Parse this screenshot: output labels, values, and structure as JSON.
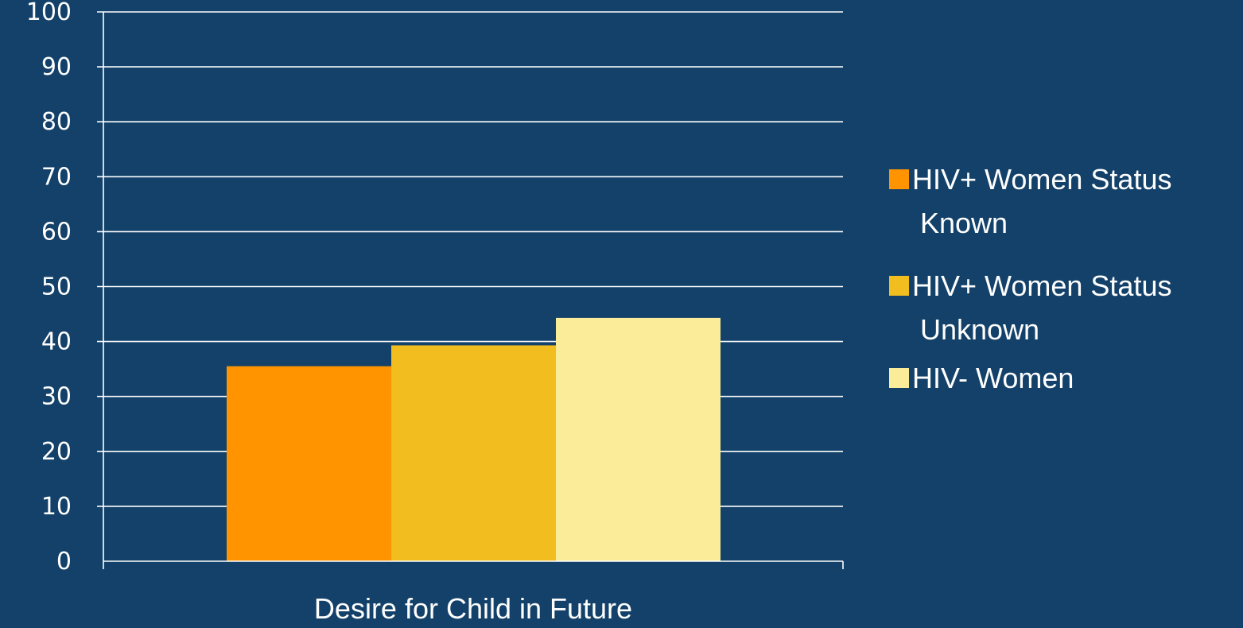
{
  "chart_data": {
    "type": "bar",
    "categories": [
      "Desire for Child in Future"
    ],
    "series": [
      {
        "name": "HIV+ Women Status Known",
        "values": [
          35.5
        ],
        "color": "#FF9400"
      },
      {
        "name": "HIV+ Women Status Unknown",
        "values": [
          39.3
        ],
        "color": "#F2BD1F"
      },
      {
        "name": "HIV- Women",
        "values": [
          44.3
        ],
        "color": "#FBEC9A"
      }
    ],
    "ylim": [
      0,
      100
    ],
    "yticks": [
      "0",
      "10",
      "20",
      "30",
      "40",
      "50",
      "60",
      "70",
      "80",
      "90",
      "100"
    ],
    "grid": true,
    "legend_position": "right",
    "legend_lines": [
      [
        "HIV+ Women Status",
        "Known"
      ],
      [
        "HIV+ Women Status",
        "Unknown"
      ],
      [
        "HIV- Women"
      ]
    ],
    "colors": {
      "background": "#134169",
      "grid": "#ffffff",
      "text": "#ffffff"
    }
  }
}
